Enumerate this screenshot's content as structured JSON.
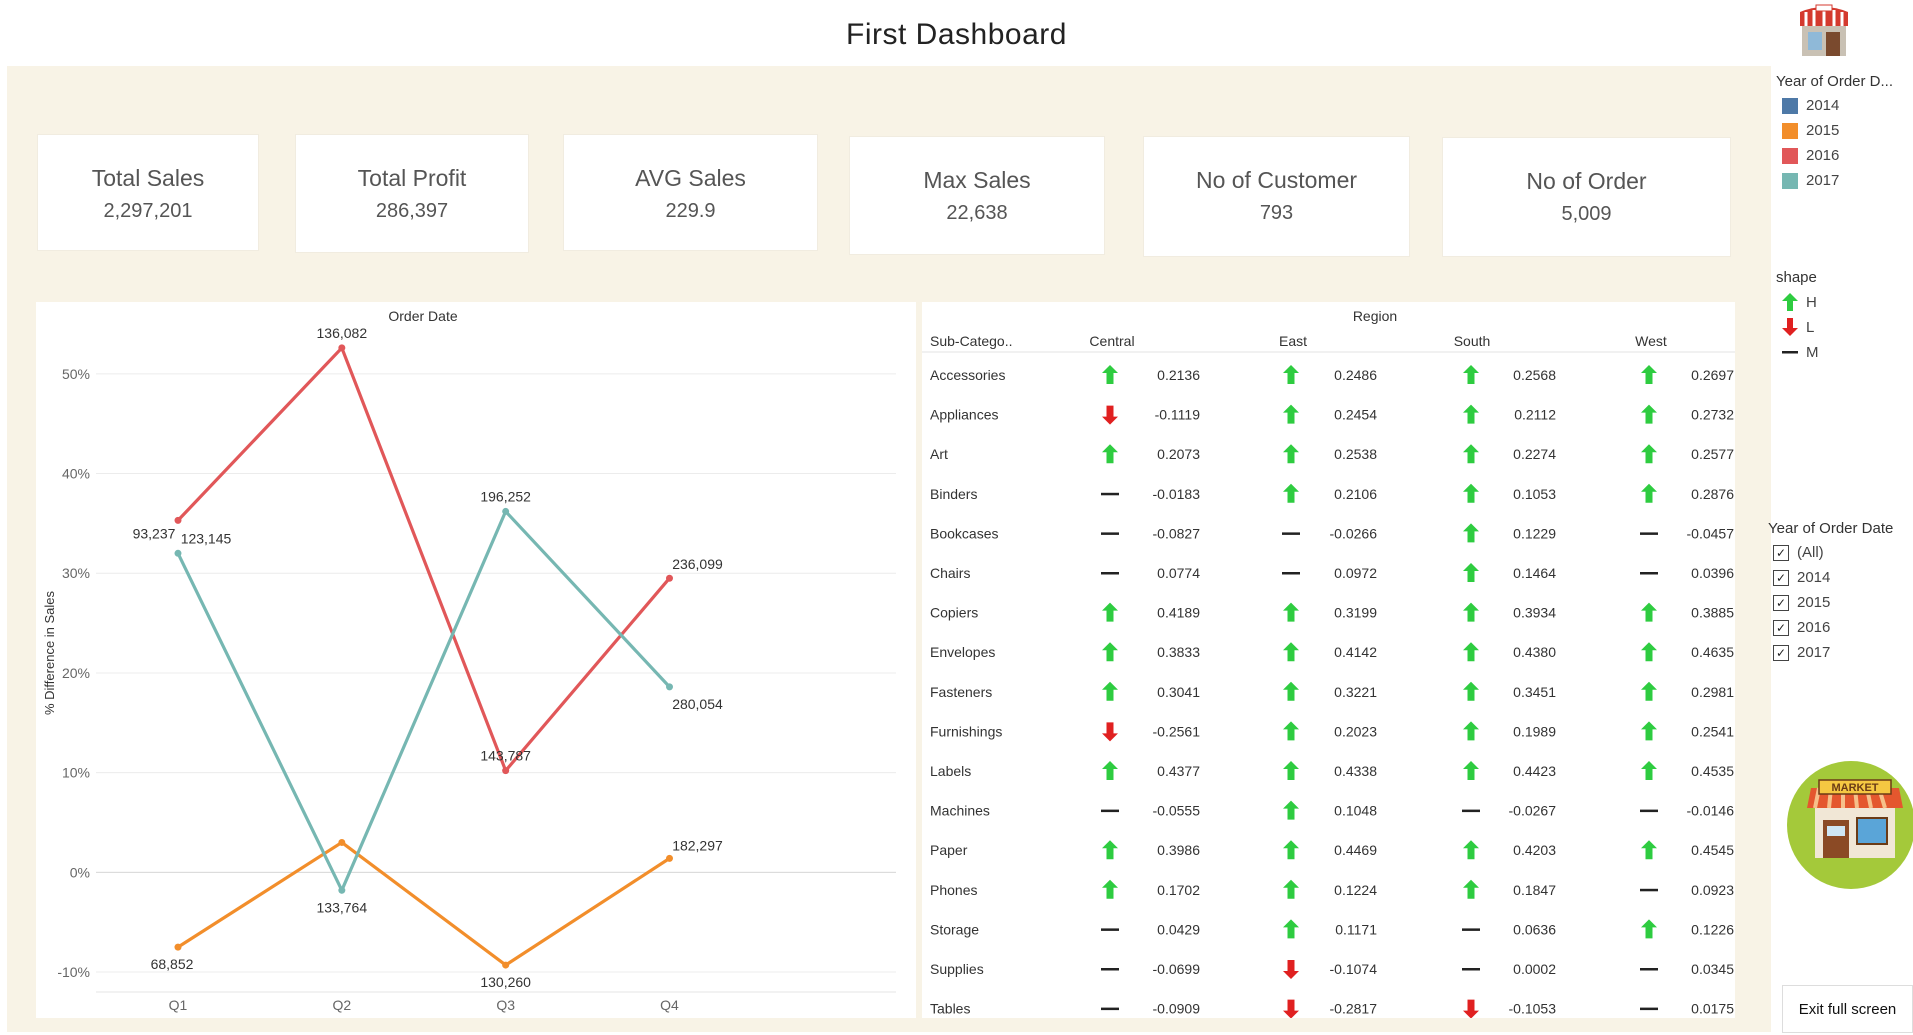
{
  "title": "First Dashboard",
  "kpis": [
    {
      "label": "Total Sales",
      "value": "2,297,201"
    },
    {
      "label": "Total Profit",
      "value": "286,397"
    },
    {
      "label": "AVG Sales",
      "value": "229.9"
    },
    {
      "label": "Max Sales",
      "value": "22,638"
    },
    {
      "label": "No of Customer",
      "value": "793"
    },
    {
      "label": "No of Order",
      "value": "5,009"
    }
  ],
  "chart_data": {
    "type": "line",
    "title": "Order Date",
    "xlabel": "",
    "ylabel": "% Difference in Sales",
    "categories": [
      "Q1",
      "Q2",
      "Q3",
      "Q4"
    ],
    "ylim": [
      -12,
      56
    ],
    "yticks": [
      -10,
      0,
      10,
      20,
      30,
      40,
      50
    ],
    "ytick_labels": [
      "-10%",
      "0%",
      "10%",
      "20%",
      "30%",
      "40%",
      "50%"
    ],
    "grid": true,
    "series": [
      {
        "name": "2015",
        "color": "#f28e2b",
        "values": [
          -7.5,
          3,
          -9.3,
          1.4
        ],
        "labels": [
          "68,852",
          "",
          "130,260",
          "182,297"
        ]
      },
      {
        "name": "2016",
        "color": "#e15759",
        "values": [
          35.3,
          52.6,
          10.2,
          29.5
        ],
        "labels": [
          "93,237",
          "136,082",
          "143,787",
          "236,099"
        ]
      },
      {
        "name": "2017",
        "color": "#76b7b2",
        "values": [
          32,
          -1.8,
          36.2,
          18.6
        ],
        "labels": [
          "123,145",
          "133,764",
          "196,252",
          "280,054"
        ]
      }
    ]
  },
  "table": {
    "header_top": "Region",
    "columns": [
      "Sub-Catego..",
      "Central",
      "East",
      "South",
      "West"
    ],
    "rows": [
      {
        "name": "Accessories",
        "cells": [
          [
            "H",
            "0.2136"
          ],
          [
            "H",
            "0.2486"
          ],
          [
            "H",
            "0.2568"
          ],
          [
            "H",
            "0.2697"
          ]
        ]
      },
      {
        "name": "Appliances",
        "cells": [
          [
            "L",
            "-0.1119"
          ],
          [
            "H",
            "0.2454"
          ],
          [
            "H",
            "0.2112"
          ],
          [
            "H",
            "0.2732"
          ]
        ]
      },
      {
        "name": "Art",
        "cells": [
          [
            "H",
            "0.2073"
          ],
          [
            "H",
            "0.2538"
          ],
          [
            "H",
            "0.2274"
          ],
          [
            "H",
            "0.2577"
          ]
        ]
      },
      {
        "name": "Binders",
        "cells": [
          [
            "M",
            "-0.0183"
          ],
          [
            "H",
            "0.2106"
          ],
          [
            "H",
            "0.1053"
          ],
          [
            "H",
            "0.2876"
          ]
        ]
      },
      {
        "name": "Bookcases",
        "cells": [
          [
            "M",
            "-0.0827"
          ],
          [
            "M",
            "-0.0266"
          ],
          [
            "H",
            "0.1229"
          ],
          [
            "M",
            "-0.0457"
          ]
        ]
      },
      {
        "name": "Chairs",
        "cells": [
          [
            "M",
            "0.0774"
          ],
          [
            "M",
            "0.0972"
          ],
          [
            "H",
            "0.1464"
          ],
          [
            "M",
            "0.0396"
          ]
        ]
      },
      {
        "name": "Copiers",
        "cells": [
          [
            "H",
            "0.4189"
          ],
          [
            "H",
            "0.3199"
          ],
          [
            "H",
            "0.3934"
          ],
          [
            "H",
            "0.3885"
          ]
        ]
      },
      {
        "name": "Envelopes",
        "cells": [
          [
            "H",
            "0.3833"
          ],
          [
            "H",
            "0.4142"
          ],
          [
            "H",
            "0.4380"
          ],
          [
            "H",
            "0.4635"
          ]
        ]
      },
      {
        "name": "Fasteners",
        "cells": [
          [
            "H",
            "0.3041"
          ],
          [
            "H",
            "0.3221"
          ],
          [
            "H",
            "0.3451"
          ],
          [
            "H",
            "0.2981"
          ]
        ]
      },
      {
        "name": "Furnishings",
        "cells": [
          [
            "L",
            "-0.2561"
          ],
          [
            "H",
            "0.2023"
          ],
          [
            "H",
            "0.1989"
          ],
          [
            "H",
            "0.2541"
          ]
        ]
      },
      {
        "name": "Labels",
        "cells": [
          [
            "H",
            "0.4377"
          ],
          [
            "H",
            "0.4338"
          ],
          [
            "H",
            "0.4423"
          ],
          [
            "H",
            "0.4535"
          ]
        ]
      },
      {
        "name": "Machines",
        "cells": [
          [
            "M",
            "-0.0555"
          ],
          [
            "H",
            "0.1048"
          ],
          [
            "M",
            "-0.0267"
          ],
          [
            "M",
            "-0.0146"
          ]
        ]
      },
      {
        "name": "Paper",
        "cells": [
          [
            "H",
            "0.3986"
          ],
          [
            "H",
            "0.4469"
          ],
          [
            "H",
            "0.4203"
          ],
          [
            "H",
            "0.4545"
          ]
        ]
      },
      {
        "name": "Phones",
        "cells": [
          [
            "H",
            "0.1702"
          ],
          [
            "H",
            "0.1224"
          ],
          [
            "H",
            "0.1847"
          ],
          [
            "M",
            "0.0923"
          ]
        ]
      },
      {
        "name": "Storage",
        "cells": [
          [
            "M",
            "0.0429"
          ],
          [
            "H",
            "0.1171"
          ],
          [
            "M",
            "0.0636"
          ],
          [
            "H",
            "0.1226"
          ]
        ]
      },
      {
        "name": "Supplies",
        "cells": [
          [
            "M",
            "-0.0699"
          ],
          [
            "L",
            "-0.1074"
          ],
          [
            "M",
            "0.0002"
          ],
          [
            "M",
            "0.0345"
          ]
        ]
      },
      {
        "name": "Tables",
        "cells": [
          [
            "M",
            "-0.0909"
          ],
          [
            "L",
            "-0.2817"
          ],
          [
            "L",
            "-0.1053"
          ],
          [
            "M",
            "0.0175"
          ]
        ]
      }
    ]
  },
  "legend_year": {
    "title": "Year of Order D...",
    "items": [
      {
        "label": "2014",
        "color": "#4e79a7"
      },
      {
        "label": "2015",
        "color": "#f28e2b"
      },
      {
        "label": "2016",
        "color": "#e15759"
      },
      {
        "label": "2017",
        "color": "#76b7b2"
      }
    ]
  },
  "legend_shape": {
    "title": "shape",
    "items": [
      {
        "label": "H",
        "icon": "arrow-up-icon",
        "color": "#2ecc40"
      },
      {
        "label": "L",
        "icon": "arrow-down-icon",
        "color": "#e02020"
      },
      {
        "label": "M",
        "icon": "dash-icon",
        "color": "#222222"
      }
    ]
  },
  "filter_year": {
    "title": "Year of Order Date",
    "options": [
      "(All)",
      "2014",
      "2015",
      "2016",
      "2017"
    ]
  },
  "exit_button": "Exit full screen",
  "icons": {
    "store_small": "shop-icon",
    "market": "market-icon"
  },
  "market_sign": "MARKET"
}
